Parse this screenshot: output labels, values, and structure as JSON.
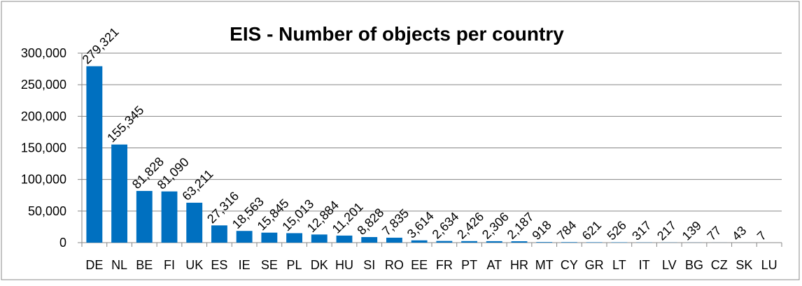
{
  "chart_data": {
    "type": "bar",
    "title": "EIS - Number of objects per country",
    "categories": [
      "DE",
      "NL",
      "BE",
      "FI",
      "UK",
      "ES",
      "IE",
      "SE",
      "PL",
      "DK",
      "HU",
      "SI",
      "RO",
      "EE",
      "FR",
      "PT",
      "AT",
      "HR",
      "MT",
      "CY",
      "GR",
      "LT",
      "IT",
      "LV",
      "BG",
      "CZ",
      "SK",
      "LU"
    ],
    "values": [
      279321,
      155345,
      81828,
      81090,
      63211,
      27316,
      18563,
      15845,
      15013,
      12884,
      11201,
      8828,
      7835,
      3614,
      2634,
      2426,
      2306,
      2187,
      918,
      784,
      621,
      526,
      317,
      217,
      139,
      77,
      43,
      7
    ],
    "value_labels": [
      "279,321",
      "155,345",
      "81,828",
      "81,090",
      "63,211",
      "27,316",
      "18,563",
      "15,845",
      "15,013",
      "12,884",
      "11,201",
      "8,828",
      "7,835",
      "3,614",
      "2,634",
      "2,426",
      "2,306",
      "2,187",
      "918",
      "784",
      "621",
      "526",
      "317",
      "217",
      "139",
      "77",
      "43",
      "7"
    ],
    "color": "#0070c0",
    "ylim": [
      0,
      300000
    ],
    "yticks": [
      0,
      {
        "value": 50000,
        "label": "50,000"
      },
      {
        "value": 100000,
        "label": "100,000"
      },
      {
        "value": 150000,
        "label": "150,000"
      },
      {
        "value": 200000,
        "label": "200,000"
      },
      {
        "value": 250000,
        "label": "250,000"
      },
      {
        "value": 300000,
        "label": "300,000"
      }
    ],
    "grid": true
  }
}
